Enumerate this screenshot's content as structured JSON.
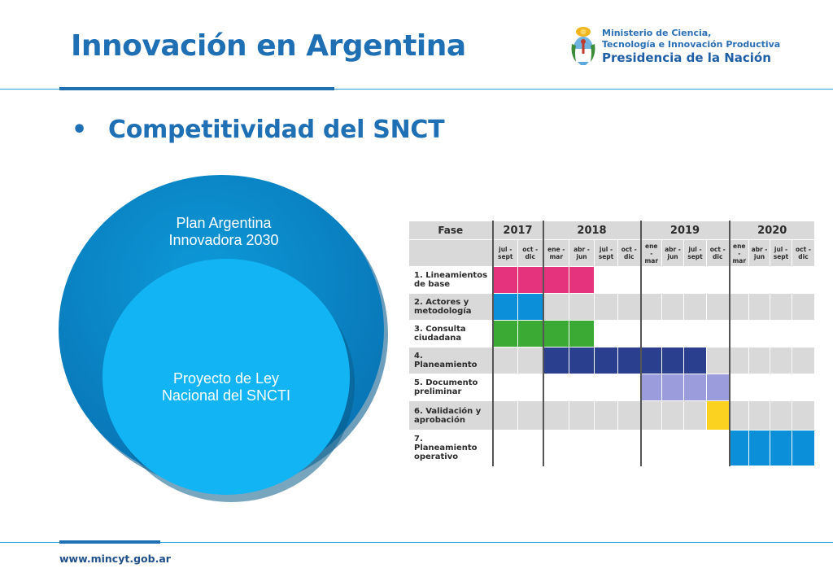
{
  "header": {
    "title": "Innovación en Argentina",
    "logo": {
      "line1": "Ministerio de Ciencia,",
      "line2": "Tecnología e Innovación Productiva",
      "line3": "Presidencia de la Nación",
      "icon": "argentina-coat-of-arms-icon"
    }
  },
  "main": {
    "bullet": "•",
    "subtitle": "Competitividad del SNCT",
    "diagram": {
      "outer_label": "Plan Argentina Innovadora 2030",
      "inner_label": "Proyecto de Ley Nacional del SNCTI",
      "outer_color": "#0a86c6",
      "inner_color": "#12b4f3"
    }
  },
  "gantt": {
    "phase_header": "Fase",
    "years": [
      {
        "label": "2017",
        "span": 2
      },
      {
        "label": "2018",
        "span": 4
      },
      {
        "label": "2019",
        "span": 4
      },
      {
        "label": "2020",
        "span": 4
      }
    ],
    "periods": [
      "jul - sept",
      "oct - dic",
      "ene - mar",
      "abr - jun",
      "jul - sept",
      "oct - dic",
      "ene - mar",
      "abr - jun",
      "jul - sept",
      "oct - dic",
      "ene - mar",
      "abr - jun",
      "jul - sept",
      "oct - dic"
    ],
    "phases": [
      {
        "label": "1. Lineamientos de base",
        "bar": {
          "start": 0,
          "end": 3,
          "color": "#e5347d"
        }
      },
      {
        "label": "2. Actores y metodología",
        "bar": {
          "start": 0,
          "end": 1,
          "color": "#0a8fd8"
        }
      },
      {
        "label": "3. Consulta ciudadana",
        "bar": {
          "start": 0,
          "end": 3,
          "color": "#3aaa35"
        }
      },
      {
        "label": "4. Planeamiento",
        "bar": {
          "start": 2,
          "end": 8,
          "color": "#2b3f8f"
        }
      },
      {
        "label": "5. Documento preliminar",
        "bar": {
          "start": 6,
          "end": 9,
          "color": "#9a9cdc"
        }
      },
      {
        "label": "6. Validación y aprobación",
        "bar": {
          "start": 9,
          "end": 9,
          "color": "#fbd21f"
        }
      },
      {
        "label": "7. Planeamiento operativo",
        "bar": {
          "start": 10,
          "end": 13,
          "color": "#0a8fd8"
        }
      }
    ]
  },
  "footer": {
    "url": "www.mincyt.gob.ar"
  }
}
